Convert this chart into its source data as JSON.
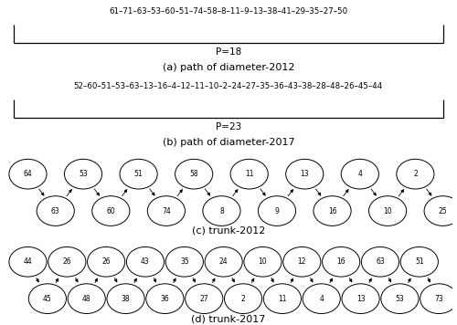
{
  "path_2012": [
    61,
    71,
    63,
    53,
    60,
    51,
    74,
    58,
    8,
    11,
    9,
    13,
    38,
    41,
    29,
    35,
    27,
    50
  ],
  "path_2012_p": "P=18",
  "path_2012_label": "(a) path of diameter-2012",
  "path_2017": [
    52,
    60,
    51,
    53,
    63,
    13,
    16,
    4,
    12,
    11,
    10,
    2,
    24,
    27,
    35,
    36,
    43,
    38,
    28,
    48,
    26,
    45,
    44
  ],
  "path_2017_p": "P=23",
  "path_2017_label": "(b) path of diameter-2017",
  "trunk_2012_top": [
    64,
    53,
    51,
    58,
    11,
    13,
    4,
    2
  ],
  "trunk_2012_bot": [
    63,
    60,
    74,
    8,
    9,
    16,
    10,
    25
  ],
  "trunk_2012_label": "(c) trunk-2012",
  "trunk_2017_top": [
    44,
    26,
    26,
    43,
    35,
    24,
    10,
    12,
    16,
    63,
    51
  ],
  "trunk_2017_bot": [
    45,
    48,
    38,
    36,
    27,
    2,
    11,
    4,
    13,
    53,
    73
  ],
  "trunk_2017_label": "(d) trunk-2017",
  "bg_color": "#ffffff",
  "text_color": "#000000",
  "node_color": "#ffffff",
  "node_edge_color": "#000000"
}
